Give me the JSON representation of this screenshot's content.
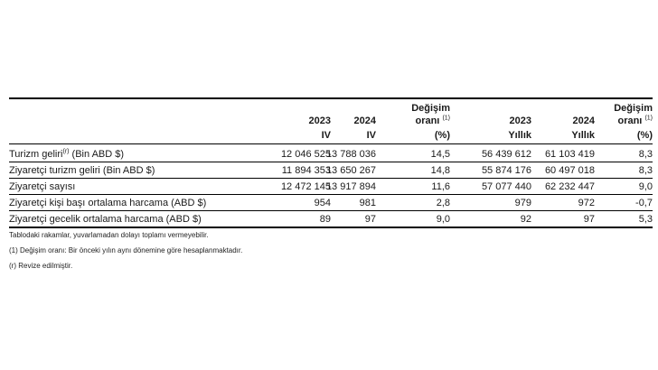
{
  "headers": {
    "y2023": "2023",
    "y2024": "2024",
    "q1": "IV",
    "q2": "IV",
    "change1_line1": "Değişim",
    "change1_line2": "oranı",
    "change1_sup": "(1)",
    "change1_unit": "(%)",
    "y2023b": "2023",
    "y2024b": "2024",
    "annual1": "Yıllık",
    "annual2": "Yıllık",
    "change2_line1": "Değişim",
    "change2_line2": "oranı",
    "change2_sup": "(1)",
    "change2_unit": "(%)"
  },
  "rows": [
    {
      "label": "Turizm geliri",
      "label_sup": "(r)",
      "label_suffix": " (Bin ABD $)",
      "v1": "12 046 525",
      "v2": "13 788 036",
      "c1": "14,5",
      "v3": "56 439 612",
      "v4": "61 103 419",
      "c2": "8,3"
    },
    {
      "label": "Ziyaretçi turizm geliri (Bin ABD $)",
      "label_sup": "",
      "label_suffix": "",
      "v1": "11 894 353",
      "v2": "13 650 267",
      "c1": "14,8",
      "v3": "55 874 176",
      "v4": "60 497 018",
      "c2": "8,3"
    },
    {
      "label": "Ziyaretçi sayısı",
      "label_sup": "",
      "label_suffix": "",
      "v1": "12 472 145",
      "v2": "13 917 894",
      "c1": "11,6",
      "v3": "57 077 440",
      "v4": "62 232 447",
      "c2": "9,0"
    },
    {
      "label": "Ziyaretçi kişi başı ortalama harcama (ABD $)",
      "label_sup": "",
      "label_suffix": "",
      "v1": "954",
      "v2": "981",
      "c1": "2,8",
      "v3": "979",
      "v4": "972",
      "c2": "-0,7"
    },
    {
      "label": "Ziyaretçi gecelik ortalama harcama (ABD $)",
      "label_sup": "",
      "label_suffix": "",
      "v1": "89",
      "v2": "97",
      "c1": "9,0",
      "v3": "92",
      "v4": "97",
      "c2": "5,3"
    }
  ],
  "notes": [
    "Tablodaki rakamlar, yuvarlamadan dolayı toplamı vermeyebilir.",
    "(1) Değişim oranı: Bir önceki yılın aynı dönemine göre hesaplanmaktadır.",
    "(r) Revize edilmiştir."
  ]
}
